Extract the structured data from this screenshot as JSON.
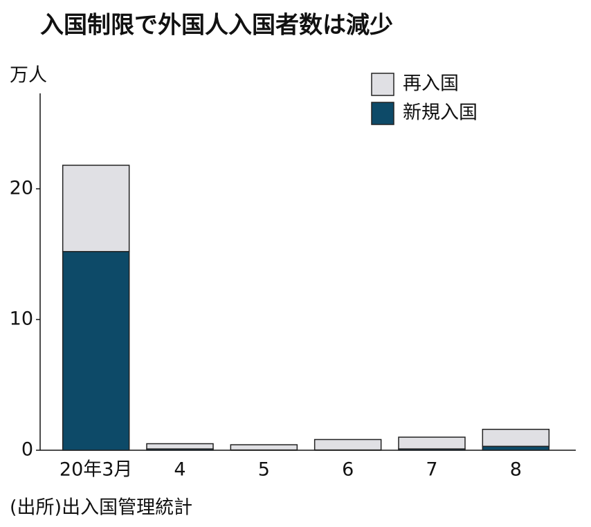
{
  "chart_data": {
    "type": "stacked_bar",
    "title": "入国制限で外国人入国者数は減少",
    "y_label": "万人",
    "source": "(出所)出入国管理統計",
    "categories": [
      "20年3月",
      "4",
      "5",
      "6",
      "7",
      "8"
    ],
    "series": [
      {
        "name": "再入国",
        "color": "#e0e0e4",
        "values": [
          6.6,
          0.4,
          0.4,
          0.8,
          0.9,
          1.3
        ]
      },
      {
        "name": "新規入国",
        "color": "#0d4a68",
        "values": [
          15.2,
          0.1,
          0.02,
          0.02,
          0.1,
          0.3
        ]
      }
    ],
    "ylim": [
      0,
      27.3
    ],
    "yticks": [
      0,
      10,
      20
    ],
    "legend": "top-right"
  }
}
